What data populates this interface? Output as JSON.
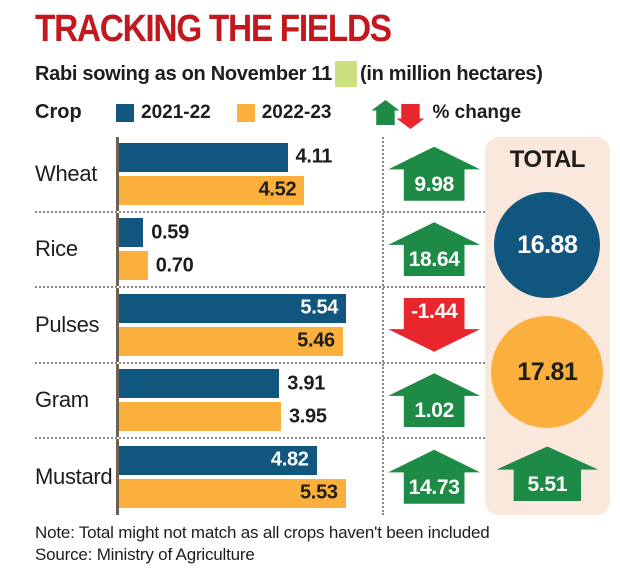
{
  "title": "TRACKING THE FIELDS",
  "subtitle": {
    "text": "Rabi sowing as on November 11",
    "units": "(in million hectares)"
  },
  "legend": {
    "crop_header": "Crop",
    "series": [
      "2021-22",
      "2022-23"
    ],
    "pct_label": "% change"
  },
  "chart_data": {
    "type": "bar",
    "orientation": "horizontal",
    "unit": "million hectares",
    "title": "Rabi sowing as on November 11 (in million hectares)",
    "categories": [
      "Wheat",
      "Rice",
      "Pulses",
      "Gram",
      "Mustard"
    ],
    "series": [
      {
        "name": "2021-22",
        "color": "#11567e",
        "values": [
          4.11,
          0.59,
          5.54,
          3.91,
          4.82
        ]
      },
      {
        "name": "2022-23",
        "color": "#fbaf3c",
        "values": [
          4.52,
          0.7,
          5.46,
          3.95,
          5.53
        ]
      }
    ],
    "pct_change": [
      9.98,
      18.64,
      -1.44,
      1.02,
      14.73
    ],
    "value_label_position": [
      [
        "out",
        "in"
      ],
      [
        "out",
        "out"
      ],
      [
        "in",
        "in"
      ],
      [
        "out",
        "out"
      ],
      [
        "in",
        "in"
      ]
    ],
    "xlim": [
      0,
      5.6
    ],
    "grid": false,
    "legend_position": "top"
  },
  "total": {
    "label": "TOTAL",
    "series1_total": "16.88",
    "series2_total": "17.81",
    "pct_change": "5.51"
  },
  "notes": {
    "note": "Note: Total might not match as all crops haven't been included",
    "source": "Source: Ministry of Agriculture"
  },
  "colors": {
    "title": "#c2191f",
    "blue": "#11567e",
    "orange": "#fbaf3c",
    "green": "#1d8b45",
    "red": "#e8262d",
    "panel_bg": "#fbe8dc",
    "highlight": "#cde07f",
    "text": "#1d1d1b"
  }
}
